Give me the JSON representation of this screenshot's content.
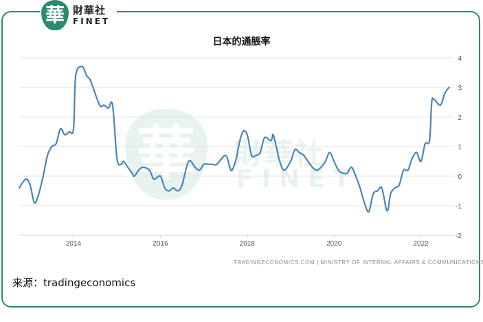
{
  "logo": {
    "badge_char": "華",
    "name_cn": "財華社",
    "name_en": "FINET"
  },
  "watermark": {
    "badge_char": "華",
    "name_cn": "財華社",
    "name_en": "FINET"
  },
  "source_credit": "TRADINGECONOMICS.COM | MINISTRY OF INTERNAL AFFAIRS & COMMUNICATIONS",
  "footer": {
    "source": "来源：tradingeconomics"
  },
  "colors": {
    "brand": "#2b8a70",
    "line": "#4a86b4",
    "grid": "#e3e3e3",
    "tick": "#555555"
  },
  "chart_data": {
    "type": "line",
    "title": "日本的通脹率",
    "xlabel": "",
    "ylabel": "",
    "ylim": [
      -2,
      4
    ],
    "xlim": [
      2012.75,
      2022.75
    ],
    "y_ticks": [
      4,
      3,
      2,
      1,
      0,
      -1,
      -2
    ],
    "x_ticks": [
      2014,
      2016,
      2018,
      2020,
      2022
    ],
    "y_axis_position": "right",
    "grid": "horizontal",
    "legend": "none",
    "series": [
      {
        "x": [
          2012.75,
          2012.9,
          2013.0,
          2013.1,
          2013.2,
          2013.3,
          2013.4,
          2013.5,
          2013.6,
          2013.7,
          2013.8,
          2013.9,
          2014.0,
          2014.05,
          2014.2,
          2014.3,
          2014.4,
          2014.6,
          2014.7,
          2014.8,
          2014.9,
          2015.0,
          2015.1,
          2015.15,
          2015.25,
          2015.35,
          2015.4,
          2015.5,
          2015.6,
          2015.75,
          2015.85,
          2016.0,
          2016.1,
          2016.2,
          2016.3,
          2016.4,
          2016.5,
          2016.65,
          2016.8,
          2016.9,
          2017.0,
          2017.1,
          2017.2,
          2017.3,
          2017.5,
          2017.6,
          2017.65,
          2017.75,
          2017.8,
          2017.9,
          2018.0,
          2018.1,
          2018.2,
          2018.3,
          2018.4,
          2018.55,
          2018.6,
          2018.7,
          2018.75,
          2018.85,
          2019.0,
          2019.1,
          2019.2,
          2019.3,
          2019.4,
          2019.5,
          2019.6,
          2019.7,
          2019.8,
          2019.9,
          2020.0,
          2020.1,
          2020.2,
          2020.3,
          2020.4,
          2020.5,
          2020.6,
          2020.7,
          2020.8,
          2020.9,
          2021.0,
          2021.1,
          2021.2,
          2021.25,
          2021.3,
          2021.4,
          2021.5,
          2021.6,
          2021.7,
          2021.8,
          2021.9,
          2022.0,
          2022.1,
          2022.2,
          2022.25,
          2022.3,
          2022.45,
          2022.55,
          2022.65
        ],
        "values": [
          -0.4,
          -0.1,
          -0.3,
          -0.9,
          -0.6,
          0.0,
          0.7,
          1.0,
          1.1,
          1.6,
          1.4,
          1.5,
          1.6,
          3.4,
          3.7,
          3.4,
          3.2,
          2.4,
          2.4,
          2.3,
          2.4,
          0.6,
          0.4,
          0.5,
          0.3,
          0.1,
          0.0,
          0.2,
          0.3,
          0.2,
          -0.1,
          0.0,
          -0.4,
          -0.5,
          -0.4,
          -0.5,
          -0.3,
          0.5,
          0.3,
          0.2,
          0.4,
          0.4,
          0.4,
          0.4,
          0.7,
          0.3,
          0.2,
          0.6,
          1.0,
          1.5,
          1.4,
          0.7,
          0.7,
          0.8,
          1.3,
          1.2,
          1.4,
          0.8,
          0.5,
          0.2,
          0.5,
          0.9,
          0.8,
          0.7,
          0.5,
          0.3,
          0.2,
          0.3,
          0.5,
          0.8,
          0.5,
          0.2,
          0.1,
          0.1,
          0.3,
          0.0,
          -0.4,
          -0.9,
          -1.2,
          -0.6,
          -0.5,
          -0.4,
          -1.1,
          -1.1,
          -0.6,
          -0.4,
          -0.3,
          0.2,
          0.2,
          0.6,
          0.8,
          0.5,
          1.1,
          1.2,
          2.5,
          2.6,
          2.4,
          2.8,
          3.0
        ]
      }
    ]
  }
}
